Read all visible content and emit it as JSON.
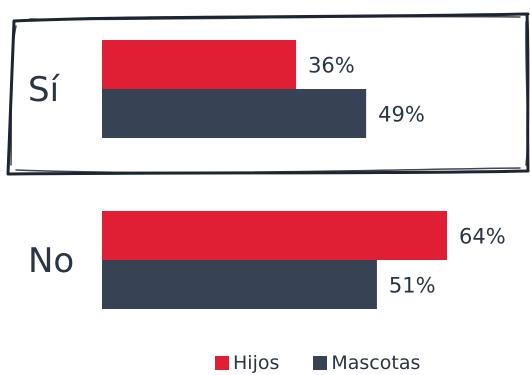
{
  "chart_data": {
    "type": "bar",
    "orientation": "horizontal",
    "categories": [
      "Sí",
      "No"
    ],
    "series": [
      {
        "name": "Hijos",
        "values": [
          36,
          64
        ],
        "color": "#e01e34"
      },
      {
        "name": "Mascotas",
        "values": [
          49,
          51
        ],
        "color": "#374354"
      }
    ],
    "value_suffix": "%",
    "value_labels": [
      [
        "36%",
        "64%"
      ],
      [
        "49%",
        "51%"
      ]
    ],
    "highlighted_category": "Sí",
    "xlim": [
      0,
      100
    ],
    "grid": false,
    "legend_position": "bottom"
  }
}
